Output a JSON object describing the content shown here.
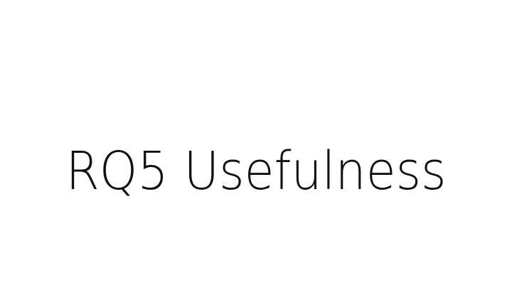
{
  "slide": {
    "title": "RQ5 Usefulness"
  },
  "colors": {
    "background": "#ffffff",
    "text": "#111111"
  }
}
